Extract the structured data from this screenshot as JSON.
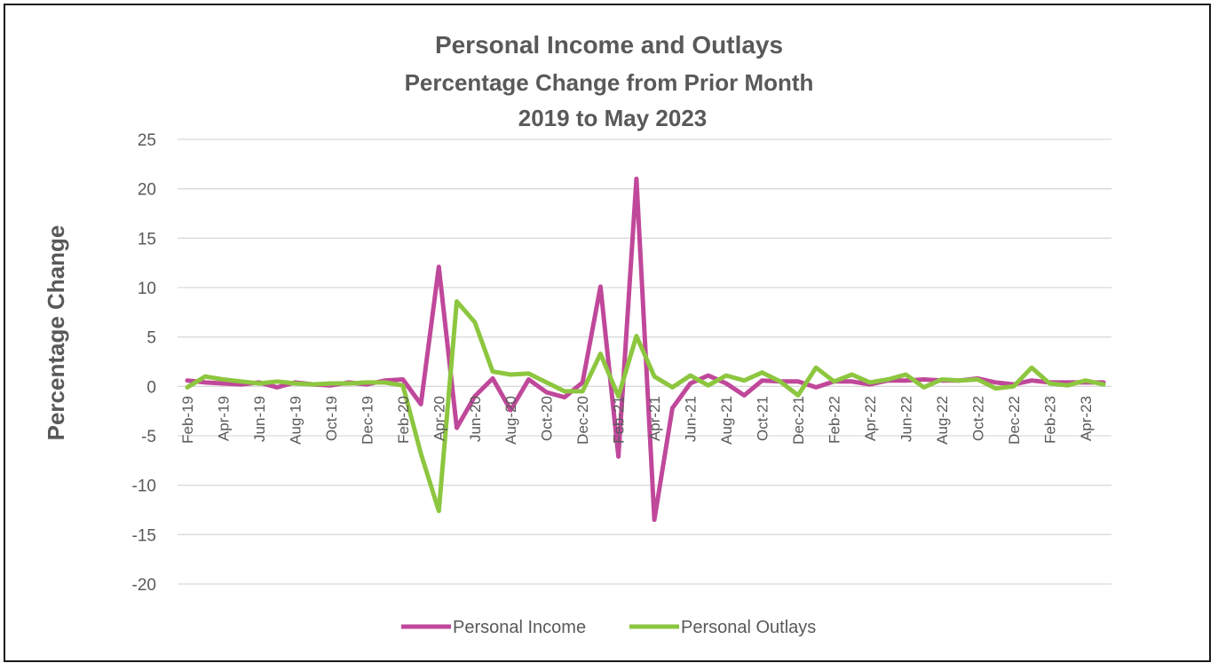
{
  "chart_data": {
    "type": "line",
    "title": "Personal Income and Outlays",
    "subtitle_lines": [
      "Percentage Change from Prior Month",
      "2019 to May 2023"
    ],
    "ylabel": "Percentage Change",
    "xlabel": "",
    "ylim": [
      -20,
      25
    ],
    "yticks": [
      25,
      20,
      15,
      10,
      5,
      0,
      -5,
      -10,
      -15,
      -20
    ],
    "grid": true,
    "legend_position": "bottom-center",
    "x": [
      "Feb-19",
      "Mar-19",
      "Apr-19",
      "May-19",
      "Jun-19",
      "Jul-19",
      "Aug-19",
      "Sep-19",
      "Oct-19",
      "Nov-19",
      "Dec-19",
      "Jan-20",
      "Feb-20",
      "Mar-20",
      "Apr-20",
      "May-20",
      "Jun-20",
      "Jul-20",
      "Aug-20",
      "Sep-20",
      "Oct-20",
      "Nov-20",
      "Dec-20",
      "Jan-21",
      "Feb-21",
      "Mar-21",
      "Apr-21",
      "May-21",
      "Jun-21",
      "Jul-21",
      "Aug-21",
      "Sep-21",
      "Oct-21",
      "Nov-21",
      "Dec-21",
      "Jan-22",
      "Feb-22",
      "Mar-22",
      "Apr-22",
      "May-22",
      "Jun-22",
      "Jul-22",
      "Aug-22",
      "Sep-22",
      "Oct-22",
      "Nov-22",
      "Dec-22",
      "Jan-23",
      "Feb-23",
      "Mar-23",
      "Apr-23",
      "May-23"
    ],
    "x_tick_labels": [
      "Feb-19",
      "Apr-19",
      "Jun-19",
      "Aug-19",
      "Oct-19",
      "Dec-19",
      "Feb-20",
      "Apr-20",
      "Jun-20",
      "Aug-20",
      "Oct-20",
      "Dec-20",
      "Feb-21",
      "Apr-21",
      "Jun-21",
      "Aug-21",
      "Oct-21",
      "Dec-21",
      "Feb-22",
      "Apr-22",
      "Jun-22",
      "Aug-22",
      "Oct-22",
      "Dec-22",
      "Feb-23",
      "Apr-23"
    ],
    "series": [
      {
        "name": "Personal Income",
        "color": "#c0489a",
        "values": [
          0.6,
          0.4,
          0.3,
          0.2,
          0.4,
          -0.1,
          0.4,
          0.2,
          0.1,
          0.4,
          0.2,
          0.6,
          0.7,
          -1.8,
          12.1,
          -4.2,
          -1.0,
          0.8,
          -2.4,
          0.7,
          -0.6,
          -1.1,
          0.4,
          10.1,
          -7.1,
          21.0,
          -13.5,
          -2.2,
          0.3,
          1.1,
          0.3,
          -0.9,
          0.6,
          0.5,
          0.5,
          -0.1,
          0.5,
          0.5,
          0.2,
          0.6,
          0.6,
          0.7,
          0.6,
          0.6,
          0.8,
          0.4,
          0.2,
          0.6,
          0.4,
          0.4,
          0.4,
          0.4
        ]
      },
      {
        "name": "Personal Outlays",
        "color": "#8dc63f",
        "values": [
          -0.1,
          1.0,
          0.7,
          0.5,
          0.3,
          0.5,
          0.3,
          0.2,
          0.3,
          0.3,
          0.4,
          0.4,
          0.1,
          -6.8,
          -12.6,
          8.6,
          6.5,
          1.5,
          1.2,
          1.3,
          0.4,
          -0.5,
          -0.5,
          3.3,
          -1.0,
          5.1,
          1.0,
          -0.1,
          1.1,
          0.1,
          1.1,
          0.6,
          1.4,
          0.5,
          -0.9,
          1.9,
          0.5,
          1.2,
          0.4,
          0.7,
          1.2,
          -0.1,
          0.7,
          0.6,
          0.7,
          -0.2,
          0.0,
          1.9,
          0.3,
          0.1,
          0.6,
          0.2
        ]
      }
    ]
  }
}
